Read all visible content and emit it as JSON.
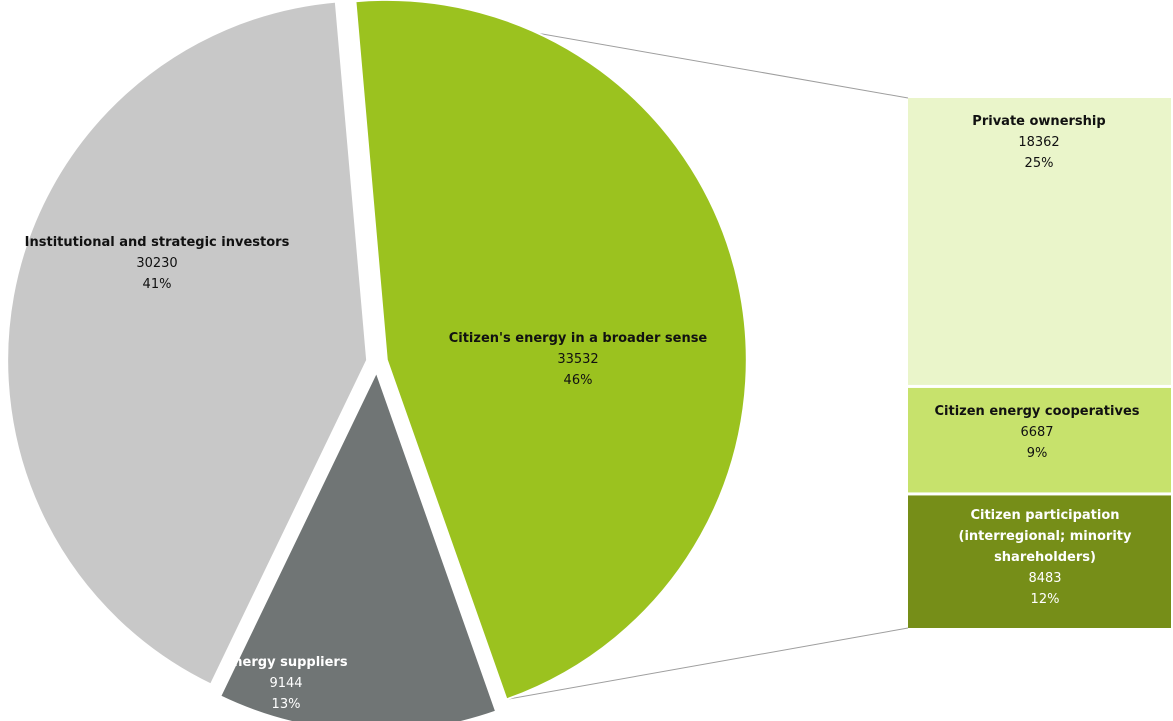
{
  "chart_data": {
    "type": "pie",
    "title": "",
    "slices": [
      {
        "label": "Citizen's energy in a broader sense",
        "value": 33532,
        "percent": "46%",
        "color": "#9bc21f",
        "text_color": "#111111"
      },
      {
        "label": "Energy suppliers",
        "value": 9144,
        "percent": "13%",
        "color": "#707575",
        "text_color": "#ffffff"
      },
      {
        "label": "Institutional  and strategic investors",
        "value": 30230,
        "percent": "41%",
        "color": "#c8c8c8",
        "text_color": "#111111"
      }
    ],
    "breakdown": {
      "of": "Citizen's energy in a broader sense",
      "type": "stacked-bar",
      "segments": [
        {
          "label_lines": [
            "Private ownership"
          ],
          "value": 18362,
          "percent": "25%",
          "color": "#eaf5ca",
          "text_color": "#111111"
        },
        {
          "label_lines": [
            "Citizen energy cooperatives"
          ],
          "value": 6687,
          "percent": "9%",
          "color": "#c7e26c",
          "text_color": "#111111"
        },
        {
          "label_lines": [
            "Citizen participation",
            "(interregional; minority",
            "shareholders)"
          ],
          "value": 8483,
          "percent": "12%",
          "color": "#768e18",
          "text_color": "#ffffff"
        }
      ]
    }
  }
}
